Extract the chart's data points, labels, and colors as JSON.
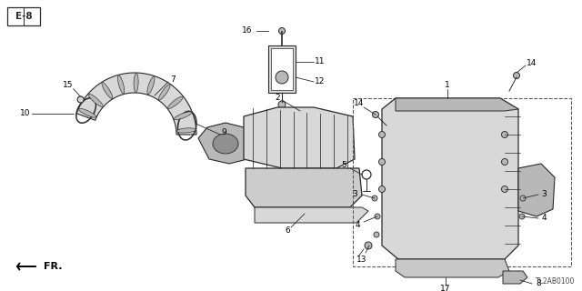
{
  "bg_color": "#ffffff",
  "line_color": "#2a2a2a",
  "label_color": "#000000",
  "catalog_code": "TL2AB0100",
  "diagram_code": "E-8",
  "gray_light": "#d8d8d8",
  "gray_mid": "#b8b8b8",
  "gray_dark": "#909090"
}
